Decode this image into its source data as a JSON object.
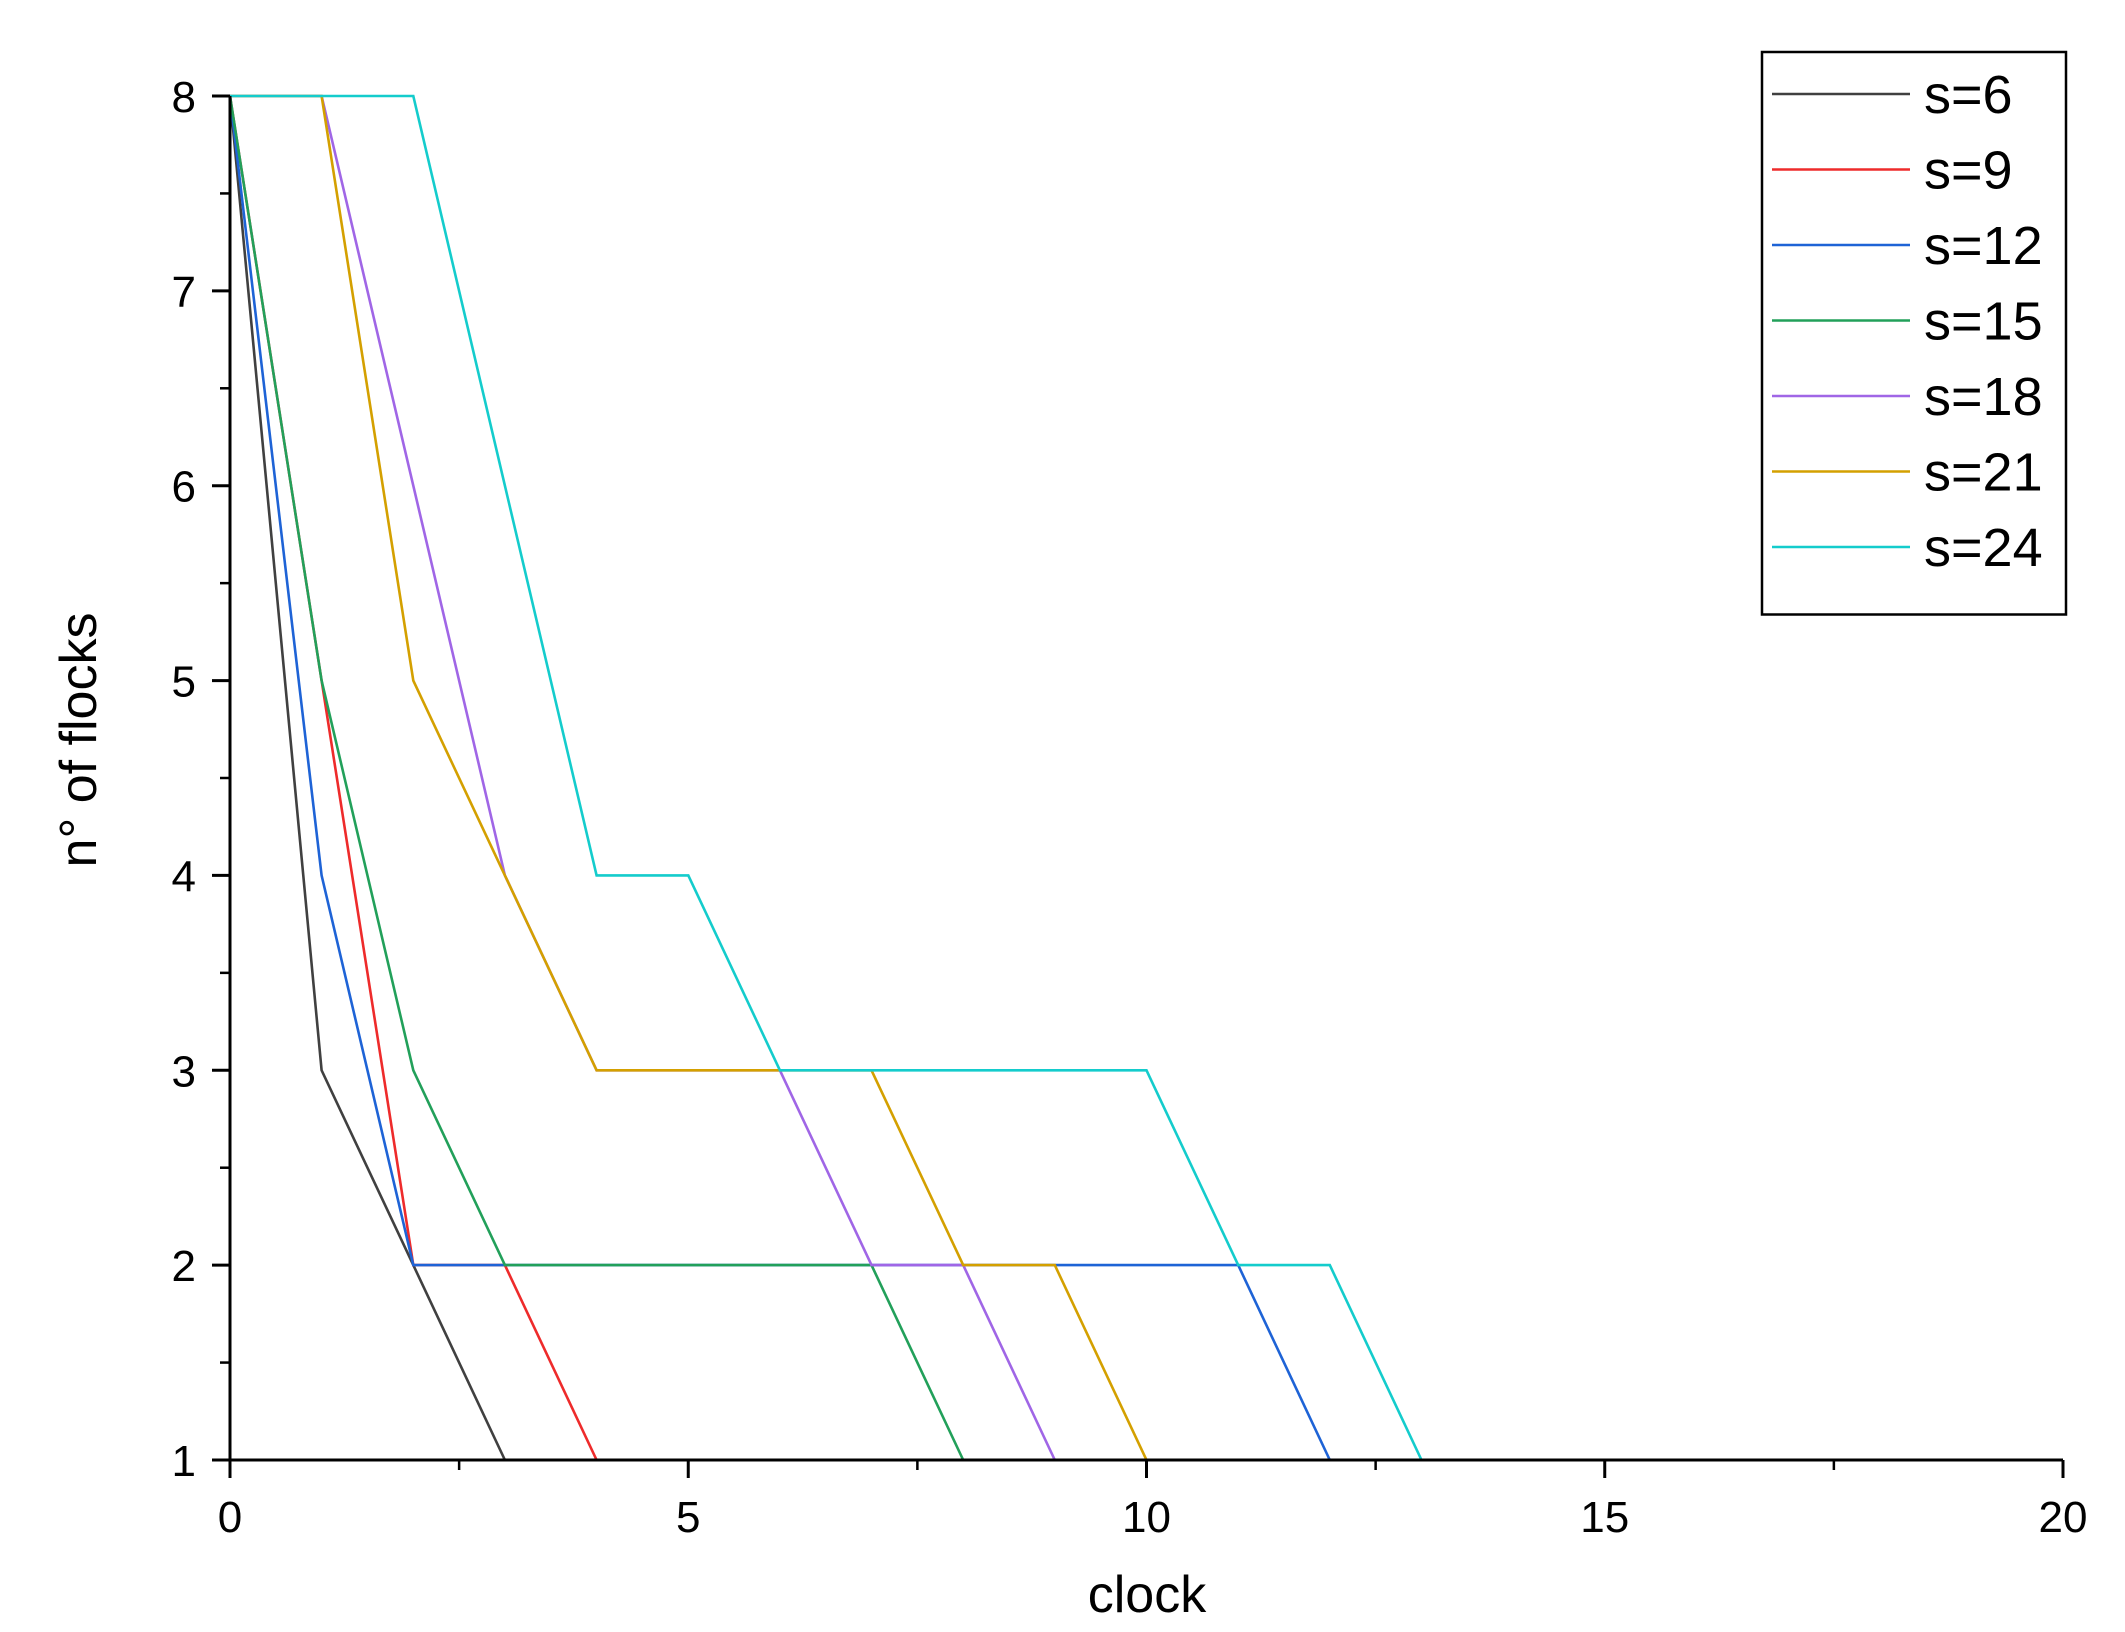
{
  "chart_data": {
    "type": "line",
    "title": "",
    "xlabel": "clock",
    "ylabel": "n° of flocks",
    "xlim": [
      0,
      20
    ],
    "ylim": [
      1,
      8
    ],
    "xticks": [
      0,
      5,
      10,
      15,
      20
    ],
    "xtick_labels": [
      "0",
      "5",
      "10",
      "15",
      "20"
    ],
    "yticks": [
      1,
      2,
      3,
      4,
      5,
      6,
      7,
      8
    ],
    "ytick_labels": [
      "1",
      "2",
      "3",
      "4",
      "5",
      "6",
      "7",
      "8"
    ],
    "grid": false,
    "legend_position": "top-right",
    "x": [
      0,
      1,
      2,
      3,
      4,
      5,
      6,
      7,
      8,
      9,
      10,
      11,
      12,
      13,
      14,
      15,
      16,
      17,
      18,
      19,
      20
    ],
    "series": [
      {
        "name": "s=6",
        "color": "#404040",
        "values": [
          8,
          3,
          2,
          1,
          1,
          1,
          1,
          1,
          1,
          1,
          1,
          1,
          1,
          1,
          1,
          1,
          1,
          1,
          1,
          1,
          1
        ]
      },
      {
        "name": "s=9",
        "color": "#ee2b2b",
        "values": [
          8,
          5,
          2,
          2,
          1,
          1,
          1,
          1,
          1,
          1,
          1,
          1,
          1,
          1,
          1,
          1,
          1,
          1,
          1,
          1,
          1
        ]
      },
      {
        "name": "s=12",
        "color": "#1e63d6",
        "values": [
          8,
          4,
          2,
          2,
          2,
          2,
          2,
          2,
          2,
          2,
          2,
          2,
          1,
          1,
          1,
          1,
          1,
          1,
          1,
          1,
          1
        ]
      },
      {
        "name": "s=15",
        "color": "#22a05a",
        "values": [
          8,
          5,
          3,
          2,
          2,
          2,
          2,
          2,
          1,
          1,
          1,
          1,
          1,
          1,
          1,
          1,
          1,
          1,
          1,
          1,
          1
        ]
      },
      {
        "name": "s=18",
        "color": "#a066e6",
        "values": [
          8,
          8,
          6,
          4,
          3,
          3,
          3,
          2,
          2,
          1,
          1,
          1,
          1,
          1,
          1,
          1,
          1,
          1,
          1,
          1,
          1
        ]
      },
      {
        "name": "s=21",
        "color": "#d4a000",
        "values": [
          8,
          8,
          5,
          4,
          3,
          3,
          3,
          3,
          2,
          2,
          1,
          1,
          1,
          1,
          1,
          1,
          1,
          1,
          1,
          1,
          1
        ]
      },
      {
        "name": "s=24",
        "color": "#14cccc",
        "values": [
          8,
          8,
          8,
          6,
          4,
          4,
          3,
          3,
          3,
          3,
          3,
          2,
          2,
          1,
          1,
          1,
          1,
          1,
          1,
          1,
          1
        ]
      }
    ]
  }
}
